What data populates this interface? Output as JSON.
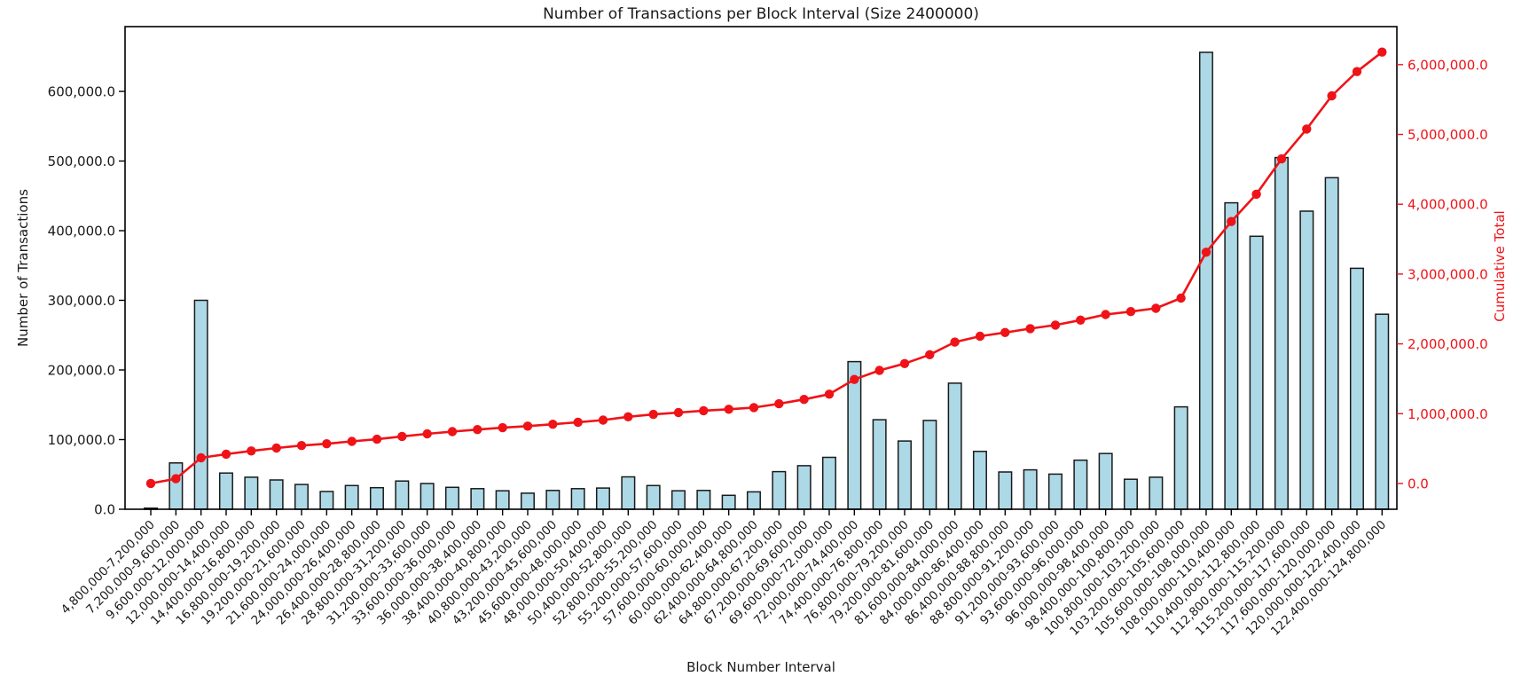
{
  "title": "Number of Transactions per Block Interval (Size 2400000)",
  "x_axis": {
    "label": "Block Number Interval"
  },
  "y_axis_left": {
    "label": "Number of Transactions",
    "color": "#1a1a1a",
    "tick_labels": [
      "0.0",
      "100,000.0",
      "200,000.0",
      "300,000.0",
      "400,000.0",
      "500,000.0",
      "600,000.0"
    ]
  },
  "y_axis_right": {
    "label": "Cumulative Total",
    "color": "#ef1318",
    "tick_labels": [
      "0.0",
      "1,000,000.0",
      "2,000,000.0",
      "3,000,000.0",
      "4,000,000.0",
      "5,000,000.0",
      "6,000,000.0"
    ]
  },
  "chart_data": {
    "type": "bar",
    "title": "Number of Transactions per Block Interval (Size 2400000)",
    "xlabel": "Block Number Interval",
    "ylabel_left": "Number of Transactions",
    "ylabel_right": "Cumulative Total",
    "grid": false,
    "legend": "none",
    "bar_color": "#add8e6",
    "bar_edge_color": "#1a1a1a",
    "line_color": "#ef1318",
    "marker": "o",
    "ylim_left": [
      0,
      693000
    ],
    "ylim_right": [
      -368000,
      6544000
    ],
    "left_ticks": [
      0,
      100000,
      200000,
      300000,
      400000,
      500000,
      600000
    ],
    "right_ticks": [
      0,
      1000000,
      2000000,
      3000000,
      4000000,
      5000000,
      6000000
    ],
    "categories": [
      "4,800,000-7,200,000",
      "7,200,000-9,600,000",
      "9,600,000-12,000,000",
      "12,000,000-14,400,000",
      "14,400,000-16,800,000",
      "16,800,000-19,200,000",
      "19,200,000-21,600,000",
      "21,600,000-24,000,000",
      "24,000,000-26,400,000",
      "26,400,000-28,800,000",
      "28,800,000-31,200,000",
      "31,200,000-33,600,000",
      "33,600,000-36,000,000",
      "36,000,000-38,400,000",
      "38,400,000-40,800,000",
      "40,800,000-43,200,000",
      "43,200,000-45,600,000",
      "45,600,000-48,000,000",
      "48,000,000-50,400,000",
      "50,400,000-52,800,000",
      "52,800,000-55,200,000",
      "55,200,000-57,600,000",
      "57,600,000-60,000,000",
      "60,000,000-62,400,000",
      "62,400,000-64,800,000",
      "64,800,000-67,200,000",
      "67,200,000-69,600,000",
      "69,600,000-72,000,000",
      "72,000,000-74,400,000",
      "74,400,000-76,800,000",
      "76,800,000-79,200,000",
      "79,200,000-81,600,000",
      "81,600,000-84,000,000",
      "84,000,000-86,400,000",
      "86,400,000-88,800,000",
      "88,800,000-91,200,000",
      "91,200,000-93,600,000",
      "93,600,000-96,000,000",
      "96,000,000-98,400,000",
      "98,400,000-100,800,000",
      "100,800,000-103,200,000",
      "103,200,000-105,600,000",
      "105,600,000-108,000,000",
      "108,000,000-110,400,000",
      "110,400,000-112,800,000",
      "112,800,000-115,200,000",
      "115,200,000-117,600,000",
      "117,600,000-120,000,000",
      "120,000,000-122,400,000",
      "122,400,000-124,800,000"
    ],
    "series": [
      {
        "name": "Number of Transactions",
        "type": "bar",
        "axis": "left",
        "values": [
          1500,
          66500,
          300000,
          52000,
          46000,
          42000,
          35500,
          25500,
          34000,
          31000,
          40500,
          37000,
          31500,
          29500,
          26500,
          23000,
          27000,
          29500,
          30500,
          46500,
          34000,
          26500,
          27000,
          20000,
          25000,
          54000,
          62500,
          74500,
          212000,
          128500,
          98000,
          127500,
          181000,
          83000,
          53500,
          56500,
          50500,
          70500,
          80000,
          43000,
          46000,
          147000,
          656000,
          440000,
          392000,
          505000,
          428000,
          476000,
          346000,
          280000
        ]
      },
      {
        "name": "Cumulative Total",
        "type": "line",
        "axis": "right",
        "values": [
          1500,
          68000,
          368000,
          420000,
          466000,
          508000,
          543500,
          569000,
          603000,
          634000,
          674500,
          711500,
          743000,
          772500,
          799000,
          822000,
          849000,
          878500,
          909000,
          955500,
          989500,
          1016000,
          1043000,
          1063000,
          1088000,
          1142000,
          1204500,
          1279000,
          1491000,
          1619500,
          1717500,
          1845000,
          2026000,
          2109000,
          2162500,
          2219000,
          2269500,
          2340000,
          2420000,
          2463000,
          2509000,
          2656000,
          3312000,
          3752000,
          4144000,
          4649000,
          5077000,
          5553000,
          5899000,
          6179000
        ]
      }
    ]
  }
}
